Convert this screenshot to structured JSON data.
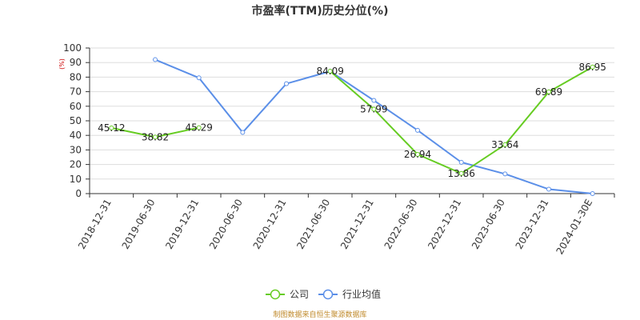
{
  "chart_data": {
    "type": "line",
    "title": "市盈率(TTM)历史分位(%)",
    "ylabel": "(%)",
    "ylim": [
      0,
      100
    ],
    "yticks": [
      0,
      10,
      20,
      30,
      40,
      50,
      60,
      70,
      80,
      90,
      100
    ],
    "grid": true,
    "legend_position": "bottom",
    "categories": [
      "2018-12-31",
      "2019-06-30",
      "2019-12-31",
      "2020-06-30",
      "2020-12-31",
      "2021-06-30",
      "2021-12-31",
      "2022-06-30",
      "2022-12-31",
      "2023-06-30",
      "2023-12-31",
      "2024-01-30E"
    ],
    "series": [
      {
        "name": "公司",
        "color": "#66cc22",
        "values": [
          45.12,
          38.82,
          45.29,
          null,
          null,
          84.09,
          57.99,
          26.94,
          13.86,
          33.64,
          69.89,
          86.95
        ],
        "labels": [
          "45.12",
          "38.82",
          "45.29",
          null,
          null,
          "84.09",
          "57.99",
          "26.94",
          "13.86",
          "33.64",
          "69.89",
          "86.95"
        ]
      },
      {
        "name": "行业均值",
        "color": "#5b8fe8",
        "values": [
          null,
          92,
          79.5,
          42,
          75.5,
          84,
          64,
          43.5,
          21.5,
          13.5,
          3,
          0
        ]
      }
    ]
  },
  "footer": {
    "source": "制图数据来自恒生聚源数据库"
  }
}
